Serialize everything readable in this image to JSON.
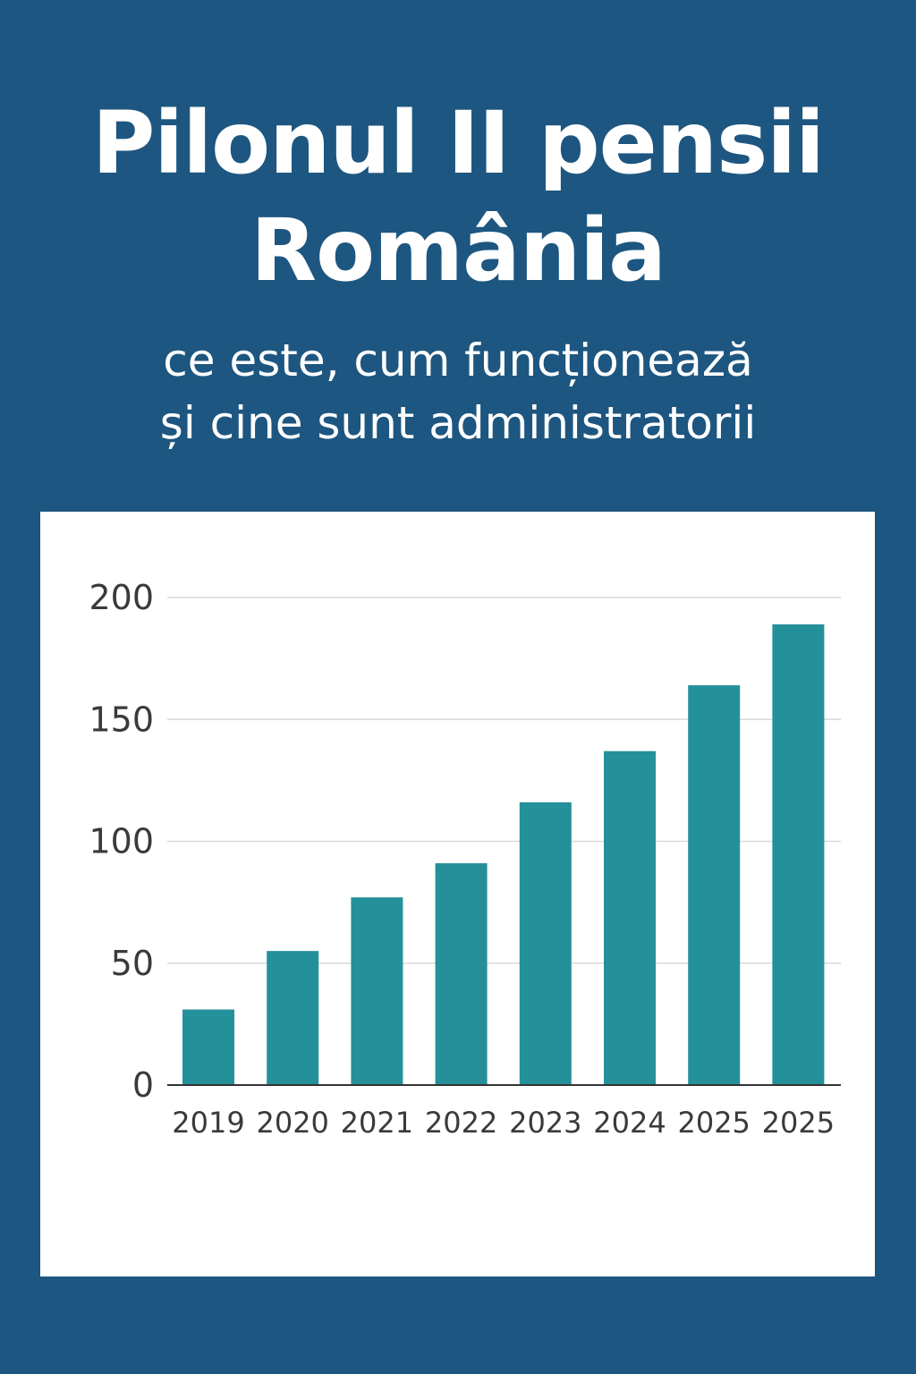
{
  "header": {
    "title_line1": "Pilonul II pensii",
    "title_line2": "România",
    "subtitle_line1": "ce este, cum funcționează",
    "subtitle_line2": "și cine sunt administratorii"
  },
  "colors": {
    "background": "#1d5680",
    "bar": "#24909a",
    "grid": "#d9d9d9",
    "axis": "#333333"
  },
  "chart_data": {
    "type": "bar",
    "categories": [
      "2019",
      "2020",
      "2021",
      "2022",
      "2023",
      "2024",
      "2025",
      "2025"
    ],
    "values": [
      31,
      55,
      77,
      91,
      116,
      137,
      164,
      189
    ],
    "title": "",
    "xlabel": "",
    "ylabel": "",
    "ylim": [
      0,
      200
    ],
    "yticks": [
      0,
      50,
      100,
      150,
      200
    ],
    "grid": true,
    "legend": "none"
  }
}
